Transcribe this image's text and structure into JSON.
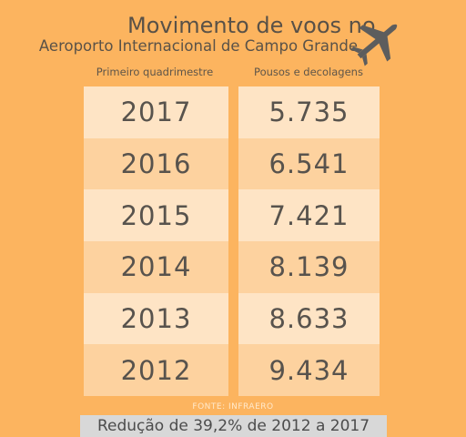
{
  "chart_data": {
    "type": "table",
    "title": "Movimento de voos no",
    "subtitle": "Aeroporto Internacional de Campo Grande",
    "columns": [
      "Primeiro quadrimestre",
      "Pousos e decolagens"
    ],
    "rows": [
      {
        "year": "2017",
        "value": "5.735"
      },
      {
        "year": "2016",
        "value": "6.541"
      },
      {
        "year": "2015",
        "value": "7.421"
      },
      {
        "year": "2014",
        "value": "8.139"
      },
      {
        "year": "2013",
        "value": "8.633"
      },
      {
        "year": "2012",
        "value": "9.434"
      }
    ],
    "source": "FONTE: INFRAERO",
    "footer": "Redução de 39,2% de 2012 a 2017"
  },
  "icons": {
    "plane": "airplane-icon"
  },
  "colors": {
    "background": "#fcb45f",
    "row_light": "#fee4c5",
    "row_dark": "#fdd29f",
    "text": "#58534d",
    "footer_bg": "#d8d8d8"
  }
}
